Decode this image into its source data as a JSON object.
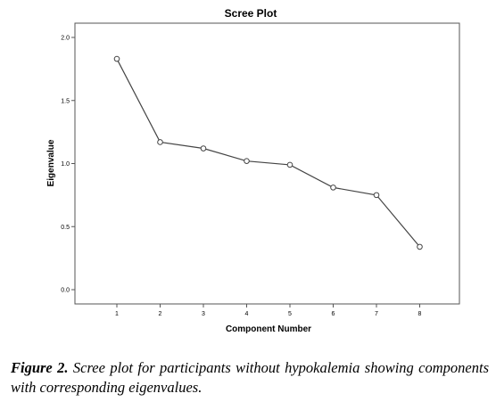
{
  "chart_data": {
    "type": "line",
    "title": "Scree Plot",
    "xlabel": "Component Number",
    "ylabel": "Eigenvalue",
    "x": [
      1,
      2,
      3,
      4,
      5,
      6,
      7,
      8
    ],
    "series": [
      {
        "values": [
          1.83,
          1.17,
          1.12,
          1.02,
          0.99,
          0.81,
          0.75,
          0.34
        ]
      }
    ],
    "xticks": [
      "1",
      "2",
      "3",
      "4",
      "5",
      "6",
      "7",
      "8"
    ],
    "yticks": [
      "0.0",
      "0.5",
      "1.0",
      "1.5",
      "2.0"
    ],
    "ylim": [
      0,
      2.0
    ],
    "grid": false,
    "marker": "open-circle",
    "line_color": "#444444"
  },
  "caption": {
    "label": "Figure 2.",
    "text": "Scree plot for participants without hypokalemia showing components with corresponding eigenvalues."
  }
}
